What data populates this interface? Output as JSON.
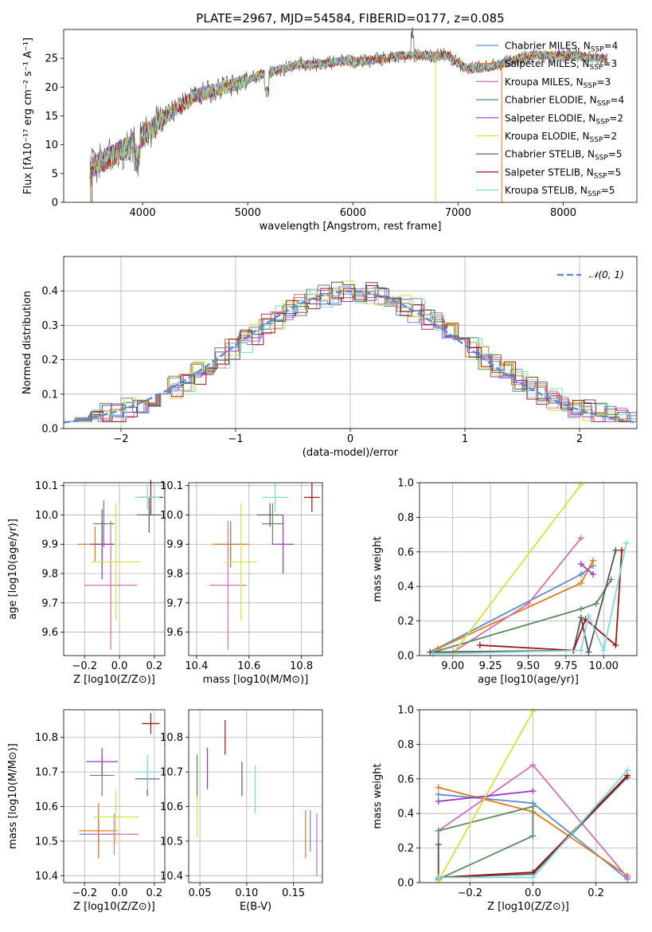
{
  "title": "PLATE=2967, MJD=54584, FIBERID=0177, z=0.085",
  "colors": [
    "#5b8bd8",
    "#e07b1a",
    "#d06fb3",
    "#5a8a5e",
    "#9b35c0",
    "#d6e23a",
    "#555555",
    "#9b1717",
    "#7fd9d9"
  ],
  "spectrum": {
    "xlabel": "wavelength [Angstrom, rest frame]",
    "ylabel": "Flux [fλ10⁻¹⁷ erg cm⁻² s⁻¹ A⁻¹]",
    "xticks": [
      "4000",
      "5000",
      "6000",
      "7000",
      "8000"
    ],
    "yticks": [
      "0",
      "5",
      "10",
      "15",
      "20",
      "25"
    ],
    "legend": [
      {
        "label": "Chabrier MILES, N",
        "sub": "SSP",
        "val": "=4"
      },
      {
        "label": "Salpeter MILES, N",
        "sub": "SSP",
        "val": "=3"
      },
      {
        "label": "Kroupa MILES, N",
        "sub": "SSP",
        "val": "=3"
      },
      {
        "label": "Chabrier ELODIE, N",
        "sub": "SSP",
        "val": "=4"
      },
      {
        "label": "Salpeter ELODIE, N",
        "sub": "SSP",
        "val": "=2"
      },
      {
        "label": "Kroupa ELODIE, N",
        "sub": "SSP",
        "val": "=2"
      },
      {
        "label": "Chabrier STELIB, N",
        "sub": "SSP",
        "val": "=5"
      },
      {
        "label": "Salpeter STELIB, N",
        "sub": "SSP",
        "val": "=5"
      },
      {
        "label": "Kroupa STELIB, N",
        "sub": "SSP",
        "val": "=5"
      }
    ]
  },
  "chart_data": [
    {
      "type": "line",
      "title": "PLATE=2967, MJD=54584, FIBERID=0177, z=0.085",
      "xlabel": "wavelength [Angstrom, rest frame]",
      "ylabel": "Flux [fλ10⁻¹⁷ erg cm⁻² s⁻¹ A⁻¹]",
      "xlim": [
        3250,
        8700
      ],
      "ylim": [
        0,
        30
      ],
      "x": [
        3500,
        3700,
        3900,
        4100,
        4300,
        4500,
        4700,
        4900,
        5100,
        5300,
        5500,
        5700,
        5900,
        6100,
        6300,
        6500,
        6700,
        6900,
        7100,
        7300,
        7500,
        7700,
        7900,
        8100,
        8300
      ],
      "y": [
        6,
        8,
        10,
        13,
        16,
        18.5,
        19.5,
        20.5,
        22,
        23,
        24,
        24,
        24.5,
        24.5,
        25,
        25.5,
        25.5,
        25.5,
        23,
        23.5,
        24.5,
        25.5,
        25.5,
        25.5,
        25
      ],
      "series": [
        {
          "name": "Chabrier MILES, N_SSP=4"
        },
        {
          "name": "Salpeter MILES, N_SSP=3"
        },
        {
          "name": "Kroupa MILES, N_SSP=3"
        },
        {
          "name": "Chabrier ELODIE, N_SSP=4"
        },
        {
          "name": "Salpeter ELODIE, N_SSP=2"
        },
        {
          "name": "Kroupa ELODIE, N_SSP=2"
        },
        {
          "name": "Chabrier STELIB, N_SSP=5"
        },
        {
          "name": "Salpeter STELIB, N_SSP=5"
        },
        {
          "name": "Kroupa STELIB, N_SSP=5"
        }
      ],
      "legend_position": "top-right"
    },
    {
      "type": "line",
      "xlabel": "(data-model)/error",
      "ylabel": "Normed distribution",
      "xlim": [
        -2.5,
        2.5
      ],
      "ylim": [
        0,
        0.5
      ],
      "xticks": [
        "−2",
        "−1",
        "0",
        "1",
        "2"
      ],
      "yticks": [
        "0.0",
        "0.1",
        "0.2",
        "0.3",
        "0.4"
      ],
      "series": [
        {
          "name": "N(0,1)",
          "style": "dashed"
        }
      ],
      "grid": true,
      "legend_position": "top-right"
    },
    {
      "type": "scatter",
      "xlabel": "Z [log10(Z/Z⊙)]",
      "ylabel": "age  [log10(age/yr)]",
      "xlim": [
        -0.32,
        0.26
      ],
      "ylim": [
        9.52,
        10.11
      ],
      "xticks": [
        "−0.2",
        "0.0",
        "0.2"
      ],
      "yticks": [
        "9.6",
        "9.7",
        "9.8",
        "9.9",
        "10.0",
        "10.1"
      ],
      "points": [
        {
          "x": -0.1,
          "y": 9.9,
          "xerr": 0.07,
          "yerr": 0.08
        },
        {
          "x": -0.14,
          "y": 9.9,
          "xerr": 0.1,
          "yerr": 0.06
        },
        {
          "x": -0.05,
          "y": 9.76,
          "xerr": 0.15,
          "yerr": 0.22
        },
        {
          "x": -0.09,
          "y": 9.97,
          "xerr": 0.06,
          "yerr": 0.08
        },
        {
          "x": -0.1,
          "y": 9.9,
          "xerr": 0.07,
          "yerr": 0.12
        },
        {
          "x": -0.02,
          "y": 9.84,
          "xerr": 0.14,
          "yerr": 0.2
        },
        {
          "x": 0.17,
          "y": 10.0,
          "xerr": 0.07,
          "yerr": 0.06
        },
        {
          "x": 0.18,
          "y": 10.06,
          "xerr": 0.07,
          "yerr": 0.06
        },
        {
          "x": 0.16,
          "y": 10.06,
          "xerr": 0.07,
          "yerr": 0.04
        }
      ],
      "grid": true
    },
    {
      "type": "scatter",
      "xlabel": "mass [log10(M/M⊙)]",
      "xlim": [
        10.37,
        10.88
      ],
      "ylim": [
        9.52,
        10.11
      ],
      "xticks": [
        "10.4",
        "10.6",
        "10.8"
      ],
      "yticks": [
        "9.6",
        "9.7",
        "9.8",
        "9.9",
        "10.0",
        "10.1"
      ],
      "points": [
        {
          "x": 10.53,
          "y": 9.9,
          "xerr": 0.06,
          "yerr": 0.08
        },
        {
          "x": 10.53,
          "y": 9.9,
          "xerr": 0.07,
          "yerr": 0.06
        },
        {
          "x": 10.52,
          "y": 9.76,
          "xerr": 0.07,
          "yerr": 0.22
        },
        {
          "x": 10.69,
          "y": 9.97,
          "xerr": 0.04,
          "yerr": 0.07
        },
        {
          "x": 10.73,
          "y": 9.9,
          "xerr": 0.04,
          "yerr": 0.1
        },
        {
          "x": 10.57,
          "y": 9.84,
          "xerr": 0.06,
          "yerr": 0.2
        },
        {
          "x": 10.68,
          "y": 10.0,
          "xerr": 0.05,
          "yerr": 0.04
        },
        {
          "x": 10.84,
          "y": 10.06,
          "xerr": 0.03,
          "yerr": 0.05
        },
        {
          "x": 10.7,
          "y": 10.06,
          "xerr": 0.05,
          "yerr": 0.05
        }
      ],
      "grid": true
    },
    {
      "type": "line",
      "xlabel": "age  [log10(age/yr)]",
      "ylabel": "mass weight",
      "xlim": [
        8.78,
        10.22
      ],
      "ylim": [
        0,
        1
      ],
      "xticks": [
        "9.00",
        "9.25",
        "9.50",
        "9.75",
        "10.00"
      ],
      "yticks": [
        "0.0",
        "0.2",
        "0.4",
        "0.6",
        "0.8",
        "1.0"
      ],
      "series": [
        {
          "x": [
            8.85,
            9.85,
            9.93
          ],
          "y": [
            0.02,
            0.47,
            0.52
          ]
        },
        {
          "x": [
            8.9,
            9.85,
            9.93
          ],
          "y": [
            0.04,
            0.42,
            0.55
          ]
        },
        {
          "x": [
            9.0,
            9.5,
            9.85
          ],
          "y": [
            0.02,
            0.3,
            0.68
          ]
        },
        {
          "x": [
            8.87,
            9.85,
            9.95,
            10.05
          ],
          "y": [
            0.02,
            0.27,
            0.3,
            0.44
          ]
        },
        {
          "x": [
            9.85,
            9.93
          ],
          "y": [
            0.53,
            0.47
          ]
        },
        {
          "x": [
            9.0,
            9.85
          ],
          "y": [
            0.01,
            0.99
          ]
        },
        {
          "x": [
            8.85,
            9.8,
            9.85,
            9.9,
            10.08
          ],
          "y": [
            0.02,
            0.03,
            0.22,
            0.02,
            0.61
          ]
        },
        {
          "x": [
            9.18,
            9.8,
            9.88,
            10.08,
            10.12
          ],
          "y": [
            0.06,
            0.03,
            0.21,
            0.06,
            0.61
          ]
        },
        {
          "x": [
            8.87,
            9.85,
            9.9,
            10.0,
            10.15
          ],
          "y": [
            0.01,
            0.03,
            0.23,
            0.03,
            0.65
          ]
        }
      ],
      "grid": true
    },
    {
      "type": "scatter",
      "xlabel": "Z [log10(Z/Z⊙)]",
      "ylabel": "mass [log10(M/M⊙)]",
      "xlim": [
        -0.32,
        0.26
      ],
      "ylim": [
        10.38,
        10.88
      ],
      "xticks": [
        "−0.2",
        "0.0",
        "0.2"
      ],
      "yticks": [
        "10.4",
        "10.5",
        "10.6",
        "10.7",
        "10.8"
      ],
      "points": [
        {
          "x": -0.12,
          "y": 10.52,
          "xerr": 0.11,
          "yerr": 0.06
        },
        {
          "x": -0.12,
          "y": 10.53,
          "xerr": 0.11,
          "yerr": 0.08
        },
        {
          "x": -0.03,
          "y": 10.52,
          "xerr": 0.14,
          "yerr": 0.06
        },
        {
          "x": -0.1,
          "y": 10.69,
          "xerr": 0.07,
          "yerr": 0.06
        },
        {
          "x": -0.1,
          "y": 10.73,
          "xerr": 0.09,
          "yerr": 0.04
        },
        {
          "x": -0.02,
          "y": 10.57,
          "xerr": 0.13,
          "yerr": 0.08
        },
        {
          "x": 0.16,
          "y": 10.68,
          "xerr": 0.07,
          "yerr": 0.05
        },
        {
          "x": 0.18,
          "y": 10.84,
          "xerr": 0.05,
          "yerr": 0.03
        },
        {
          "x": 0.16,
          "y": 10.7,
          "xerr": 0.08,
          "yerr": 0.05
        }
      ],
      "grid": true
    },
    {
      "type": "scatter",
      "xlabel": "E(B-V)",
      "xlim": [
        0.038,
        0.181
      ],
      "ylim": [
        10.38,
        10.88
      ],
      "xticks": [
        "0.05",
        "0.10",
        "0.15"
      ],
      "yticks": [
        "10.4",
        "10.5",
        "10.6",
        "10.7",
        "10.8"
      ],
      "points": [
        {
          "x": 0.168,
          "y": 10.53,
          "yerr": 0.06
        },
        {
          "x": 0.163,
          "y": 10.52,
          "yerr": 0.07
        },
        {
          "x": 0.175,
          "y": 10.49,
          "yerr": 0.09
        },
        {
          "x": 0.047,
          "y": 10.69,
          "yerr": 0.06
        },
        {
          "x": 0.058,
          "y": 10.71,
          "yerr": 0.06
        },
        {
          "x": 0.047,
          "y": 10.57,
          "yerr": 0.06
        },
        {
          "x": 0.095,
          "y": 10.68,
          "yerr": 0.05
        },
        {
          "x": 0.077,
          "y": 10.8,
          "yerr": 0.05
        },
        {
          "x": 0.109,
          "y": 10.65,
          "yerr": 0.07
        }
      ],
      "grid": true
    },
    {
      "type": "line",
      "xlabel": "Z [log10(Z/Z⊙)]",
      "ylabel": "mass weight",
      "xlim": [
        -0.36,
        0.33
      ],
      "ylim": [
        0,
        1
      ],
      "xticks": [
        "−0.2",
        "0.0",
        "0.2"
      ],
      "yticks": [
        "0.0",
        "0.2",
        "0.4",
        "0.6",
        "0.8",
        "1.0"
      ],
      "series": [
        {
          "x": [
            -0.3,
            0.0,
            0.3
          ],
          "y": [
            0.51,
            0.46,
            0.02
          ]
        },
        {
          "x": [
            -0.3,
            0.0,
            0.3
          ],
          "y": [
            0.55,
            0.41,
            0.04
          ]
        },
        {
          "x": [
            -0.3,
            0.0,
            0.3
          ],
          "y": [
            0.3,
            0.68,
            0.03
          ]
        },
        {
          "x": [
            -0.3,
            0.0,
            0.0,
            -0.3,
            -0.3
          ],
          "y": [
            0.02,
            0.27,
            0.44,
            0.3,
            0.02
          ]
        },
        {
          "x": [
            -0.3,
            0.0
          ],
          "y": [
            0.47,
            0.53
          ]
        },
        {
          "x": [
            -0.3,
            0.0
          ],
          "y": [
            0.01,
            0.99
          ]
        },
        {
          "x": [
            -0.3,
            -0.3,
            0.0,
            0.3
          ],
          "y": [
            0.22,
            0.03,
            0.05,
            0.61
          ]
        },
        {
          "x": [
            -0.3,
            0.0,
            0.3
          ],
          "y": [
            0.03,
            0.06,
            0.62
          ]
        },
        {
          "x": [
            -0.3,
            0.0,
            0.3
          ],
          "y": [
            0.03,
            0.03,
            0.65
          ]
        }
      ],
      "grid": true
    }
  ],
  "labels": {
    "hist_legend": "𝒩(0, 1)"
  }
}
